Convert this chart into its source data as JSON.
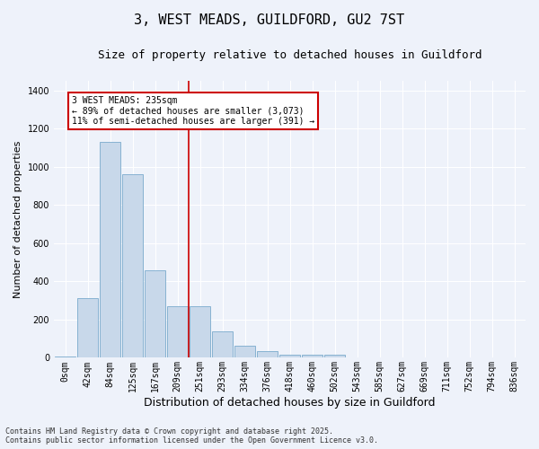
{
  "title": "3, WEST MEADS, GUILDFORD, GU2 7ST",
  "subtitle": "Size of property relative to detached houses in Guildford",
  "xlabel": "Distribution of detached houses by size in Guildford",
  "ylabel": "Number of detached properties",
  "bar_labels": [
    "0sqm",
    "42sqm",
    "84sqm",
    "125sqm",
    "167sqm",
    "209sqm",
    "251sqm",
    "293sqm",
    "334sqm",
    "376sqm",
    "418sqm",
    "460sqm",
    "502sqm",
    "543sqm",
    "585sqm",
    "627sqm",
    "669sqm",
    "711sqm",
    "752sqm",
    "794sqm",
    "836sqm"
  ],
  "bar_values": [
    5,
    310,
    1130,
    960,
    460,
    270,
    270,
    140,
    65,
    35,
    15,
    15,
    15,
    0,
    0,
    0,
    0,
    0,
    0,
    0,
    0
  ],
  "bar_color": "#c8d8ea",
  "bar_edge_color": "#7aaacc",
  "bar_edge_width": 0.6,
  "red_line_x": 6,
  "annotation_text": "3 WEST MEADS: 235sqm\n← 89% of detached houses are smaller (3,073)\n11% of semi-detached houses are larger (391) →",
  "annotation_box_color": "#ffffff",
  "annotation_box_edge": "#cc0000",
  "footer_line1": "Contains HM Land Registry data © Crown copyright and database right 2025.",
  "footer_line2": "Contains public sector information licensed under the Open Government Licence v3.0.",
  "ylim": [
    0,
    1450
  ],
  "yticks": [
    0,
    200,
    400,
    600,
    800,
    1000,
    1200,
    1400
  ],
  "bg_color": "#eef2fa",
  "plot_bg_color": "#eef2fa",
  "grid_color": "#ffffff",
  "title_fontsize": 11,
  "subtitle_fontsize": 9,
  "xlabel_fontsize": 9,
  "ylabel_fontsize": 8,
  "tick_fontsize": 7,
  "annot_fontsize": 7,
  "footer_fontsize": 6
}
